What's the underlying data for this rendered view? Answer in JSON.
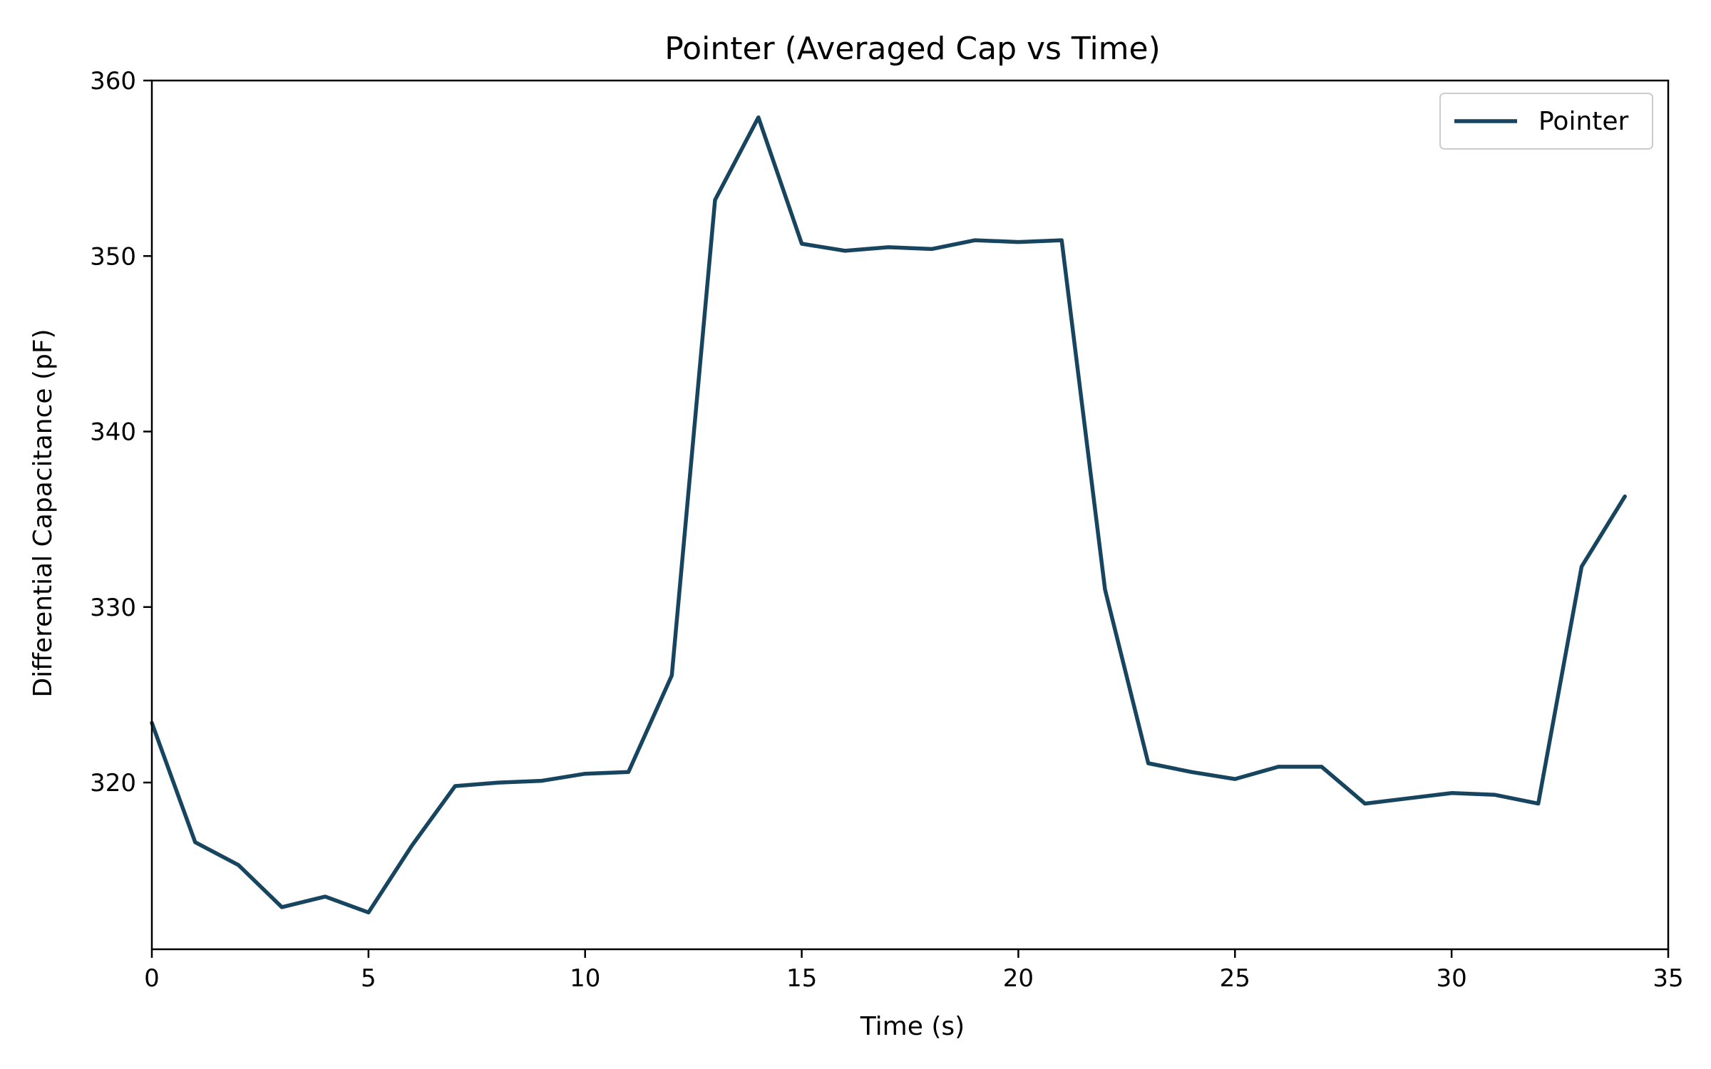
{
  "chart_data": {
    "type": "line",
    "title": "Pointer (Averaged Cap vs Time)",
    "xlabel": "Time (s)",
    "ylabel": "Differential Capacitance (pF)",
    "xlim": [
      0,
      35
    ],
    "ylim": [
      310.5,
      360
    ],
    "xticks": [
      0,
      5,
      10,
      15,
      20,
      25,
      30,
      35
    ],
    "yticks": [
      320,
      330,
      340,
      350,
      360
    ],
    "grid": false,
    "legend_position": "top-right",
    "series": [
      {
        "name": "Pointer",
        "color": "#17445e",
        "x": [
          0,
          1,
          2,
          3,
          4,
          5,
          6,
          7,
          8,
          9,
          10,
          11,
          12,
          13,
          14,
          15,
          16,
          17,
          18,
          19,
          20,
          21,
          22,
          23,
          24,
          25,
          26,
          27,
          28,
          29,
          30,
          31,
          32,
          33,
          34
        ],
        "values": [
          323.4,
          316.6,
          315.3,
          312.9,
          313.5,
          312.6,
          316.4,
          319.8,
          320.0,
          320.1,
          320.5,
          320.6,
          326.1,
          353.2,
          357.9,
          350.7,
          350.3,
          350.5,
          350.4,
          350.9,
          350.8,
          350.9,
          331.0,
          321.1,
          320.6,
          320.2,
          320.9,
          320.9,
          318.8,
          319.1,
          319.4,
          319.3,
          318.8,
          332.3,
          336.3
        ]
      }
    ]
  }
}
